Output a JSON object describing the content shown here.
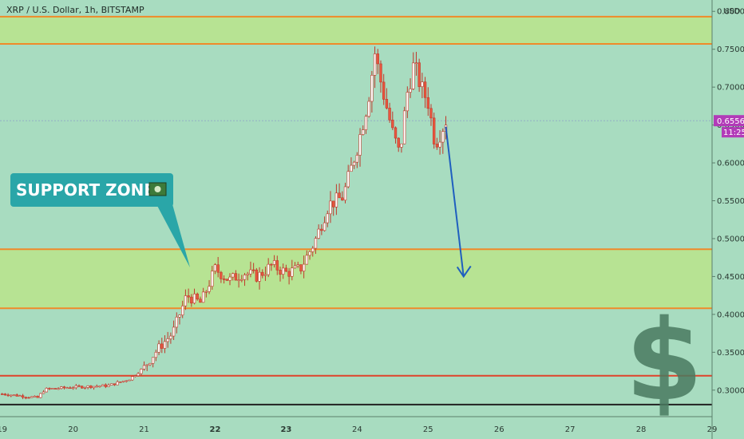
{
  "header": {
    "symbol_line": "XRP / U.S. Dollar, 1h, BITSTAMP",
    "currency": "USD"
  },
  "colors": {
    "background": "#a8dcc0",
    "zone_fill": "#b8e38e",
    "zone_border": "#ef8a2a",
    "support_line": "#e0432a",
    "base_line": "#222222",
    "candle_up": "#ffffff",
    "candle_down": "#e9573f",
    "arrow": "#1f5fbf",
    "callout": "#2aa6a8",
    "price_badge": "#b23bb8",
    "dollar": "#4a7a60"
  },
  "annotations": {
    "callout_text": "SUPPORT ZONE",
    "callout_icon": "banknote-icon",
    "dollar_sign": "$",
    "forecast_arrow_to": 0.45
  },
  "price_badge": {
    "price": "0.65568",
    "time": "11:25"
  },
  "chart_data": {
    "type": "candlestick",
    "title": "",
    "ylabel": "USD",
    "ylim": [
      0.265,
      0.815
    ],
    "xlim": [
      18.97,
      29.0
    ],
    "y_ticks": [
      "0.80000",
      "0.75000",
      "0.70000",
      "0.65000",
      "0.60000",
      "0.55000",
      "0.50000",
      "0.45000",
      "0.40000",
      "0.35000",
      "0.30000"
    ],
    "x_ticks": [
      "19",
      "20",
      "21",
      "22",
      "23",
      "24",
      "25",
      "26",
      "27",
      "28",
      "29"
    ],
    "bold_x_ticks": [
      "22",
      "23"
    ],
    "current_price": 0.65568,
    "zones": [
      {
        "low": 0.757,
        "high": 0.793
      },
      {
        "low": 0.408,
        "high": 0.486
      }
    ],
    "horizontal_lines": [
      {
        "price": 0.319,
        "role": "support"
      },
      {
        "price": 0.281,
        "role": "base"
      }
    ],
    "series": [
      {
        "name": "",
        "points": [
          {
            "day": 19.0,
            "close": 0.295
          },
          {
            "day": 19.3,
            "close": 0.292
          },
          {
            "day": 19.5,
            "close": 0.29
          },
          {
            "day": 19.6,
            "close": 0.301
          },
          {
            "day": 20.0,
            "close": 0.304
          },
          {
            "day": 20.5,
            "close": 0.306
          },
          {
            "day": 20.8,
            "close": 0.315
          },
          {
            "day": 21.0,
            "close": 0.33
          },
          {
            "day": 21.2,
            "close": 0.355
          },
          {
            "day": 21.4,
            "close": 0.375
          },
          {
            "day": 21.6,
            "close": 0.425
          },
          {
            "day": 21.8,
            "close": 0.415
          },
          {
            "day": 22.0,
            "close": 0.46
          },
          {
            "day": 22.2,
            "close": 0.445
          },
          {
            "day": 22.4,
            "close": 0.455
          },
          {
            "day": 22.6,
            "close": 0.45
          },
          {
            "day": 22.8,
            "close": 0.465
          },
          {
            "day": 23.0,
            "close": 0.455
          },
          {
            "day": 23.2,
            "close": 0.46
          },
          {
            "day": 23.4,
            "close": 0.495
          },
          {
            "day": 23.6,
            "close": 0.545
          },
          {
            "day": 23.8,
            "close": 0.555
          },
          {
            "day": 24.0,
            "close": 0.62
          },
          {
            "day": 24.15,
            "close": 0.68
          },
          {
            "day": 24.25,
            "close": 0.745
          },
          {
            "day": 24.35,
            "close": 0.7
          },
          {
            "day": 24.5,
            "close": 0.64
          },
          {
            "day": 24.6,
            "close": 0.61
          },
          {
            "day": 24.7,
            "close": 0.69
          },
          {
            "day": 24.8,
            "close": 0.73
          },
          {
            "day": 24.9,
            "close": 0.7
          },
          {
            "day": 25.0,
            "close": 0.68
          },
          {
            "day": 25.1,
            "close": 0.625
          },
          {
            "day": 25.25,
            "close": 0.656
          }
        ]
      }
    ]
  }
}
